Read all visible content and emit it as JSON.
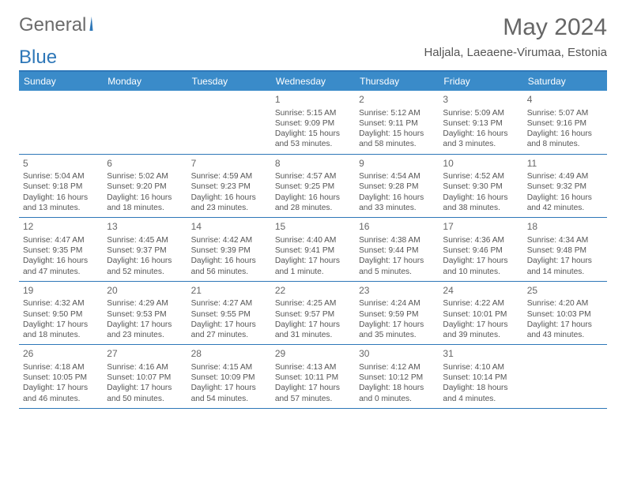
{
  "logo": {
    "text1": "General",
    "text2": "Blue"
  },
  "title": "May 2024",
  "location": "Haljala, Laeaene-Virumaa, Estonia",
  "colors": {
    "header_bar": "#3a8bc9",
    "header_border": "#2e77b8",
    "logo_blue": "#2e77b8",
    "text": "#555555",
    "bg": "#ffffff"
  },
  "weekdays": [
    "Sunday",
    "Monday",
    "Tuesday",
    "Wednesday",
    "Thursday",
    "Friday",
    "Saturday"
  ],
  "weeks": [
    [
      {
        "n": "",
        "empty": true
      },
      {
        "n": "",
        "empty": true
      },
      {
        "n": "",
        "empty": true
      },
      {
        "n": "1",
        "sunrise": "5:15 AM",
        "sunset": "9:09 PM",
        "daylight": "15 hours and 53 minutes."
      },
      {
        "n": "2",
        "sunrise": "5:12 AM",
        "sunset": "9:11 PM",
        "daylight": "15 hours and 58 minutes."
      },
      {
        "n": "3",
        "sunrise": "5:09 AM",
        "sunset": "9:13 PM",
        "daylight": "16 hours and 3 minutes."
      },
      {
        "n": "4",
        "sunrise": "5:07 AM",
        "sunset": "9:16 PM",
        "daylight": "16 hours and 8 minutes."
      }
    ],
    [
      {
        "n": "5",
        "sunrise": "5:04 AM",
        "sunset": "9:18 PM",
        "daylight": "16 hours and 13 minutes."
      },
      {
        "n": "6",
        "sunrise": "5:02 AM",
        "sunset": "9:20 PM",
        "daylight": "16 hours and 18 minutes."
      },
      {
        "n": "7",
        "sunrise": "4:59 AM",
        "sunset": "9:23 PM",
        "daylight": "16 hours and 23 minutes."
      },
      {
        "n": "8",
        "sunrise": "4:57 AM",
        "sunset": "9:25 PM",
        "daylight": "16 hours and 28 minutes."
      },
      {
        "n": "9",
        "sunrise": "4:54 AM",
        "sunset": "9:28 PM",
        "daylight": "16 hours and 33 minutes."
      },
      {
        "n": "10",
        "sunrise": "4:52 AM",
        "sunset": "9:30 PM",
        "daylight": "16 hours and 38 minutes."
      },
      {
        "n": "11",
        "sunrise": "4:49 AM",
        "sunset": "9:32 PM",
        "daylight": "16 hours and 42 minutes."
      }
    ],
    [
      {
        "n": "12",
        "sunrise": "4:47 AM",
        "sunset": "9:35 PM",
        "daylight": "16 hours and 47 minutes."
      },
      {
        "n": "13",
        "sunrise": "4:45 AM",
        "sunset": "9:37 PM",
        "daylight": "16 hours and 52 minutes."
      },
      {
        "n": "14",
        "sunrise": "4:42 AM",
        "sunset": "9:39 PM",
        "daylight": "16 hours and 56 minutes."
      },
      {
        "n": "15",
        "sunrise": "4:40 AM",
        "sunset": "9:41 PM",
        "daylight": "17 hours and 1 minute."
      },
      {
        "n": "16",
        "sunrise": "4:38 AM",
        "sunset": "9:44 PM",
        "daylight": "17 hours and 5 minutes."
      },
      {
        "n": "17",
        "sunrise": "4:36 AM",
        "sunset": "9:46 PM",
        "daylight": "17 hours and 10 minutes."
      },
      {
        "n": "18",
        "sunrise": "4:34 AM",
        "sunset": "9:48 PM",
        "daylight": "17 hours and 14 minutes."
      }
    ],
    [
      {
        "n": "19",
        "sunrise": "4:32 AM",
        "sunset": "9:50 PM",
        "daylight": "17 hours and 18 minutes."
      },
      {
        "n": "20",
        "sunrise": "4:29 AM",
        "sunset": "9:53 PM",
        "daylight": "17 hours and 23 minutes."
      },
      {
        "n": "21",
        "sunrise": "4:27 AM",
        "sunset": "9:55 PM",
        "daylight": "17 hours and 27 minutes."
      },
      {
        "n": "22",
        "sunrise": "4:25 AM",
        "sunset": "9:57 PM",
        "daylight": "17 hours and 31 minutes."
      },
      {
        "n": "23",
        "sunrise": "4:24 AM",
        "sunset": "9:59 PM",
        "daylight": "17 hours and 35 minutes."
      },
      {
        "n": "24",
        "sunrise": "4:22 AM",
        "sunset": "10:01 PM",
        "daylight": "17 hours and 39 minutes."
      },
      {
        "n": "25",
        "sunrise": "4:20 AM",
        "sunset": "10:03 PM",
        "daylight": "17 hours and 43 minutes."
      }
    ],
    [
      {
        "n": "26",
        "sunrise": "4:18 AM",
        "sunset": "10:05 PM",
        "daylight": "17 hours and 46 minutes."
      },
      {
        "n": "27",
        "sunrise": "4:16 AM",
        "sunset": "10:07 PM",
        "daylight": "17 hours and 50 minutes."
      },
      {
        "n": "28",
        "sunrise": "4:15 AM",
        "sunset": "10:09 PM",
        "daylight": "17 hours and 54 minutes."
      },
      {
        "n": "29",
        "sunrise": "4:13 AM",
        "sunset": "10:11 PM",
        "daylight": "17 hours and 57 minutes."
      },
      {
        "n": "30",
        "sunrise": "4:12 AM",
        "sunset": "10:12 PM",
        "daylight": "18 hours and 0 minutes."
      },
      {
        "n": "31",
        "sunrise": "4:10 AM",
        "sunset": "10:14 PM",
        "daylight": "18 hours and 4 minutes."
      },
      {
        "n": "",
        "empty": true
      }
    ]
  ],
  "labels": {
    "sunrise_prefix": "Sunrise: ",
    "sunset_prefix": "Sunset: ",
    "daylight_prefix": "Daylight: "
  }
}
